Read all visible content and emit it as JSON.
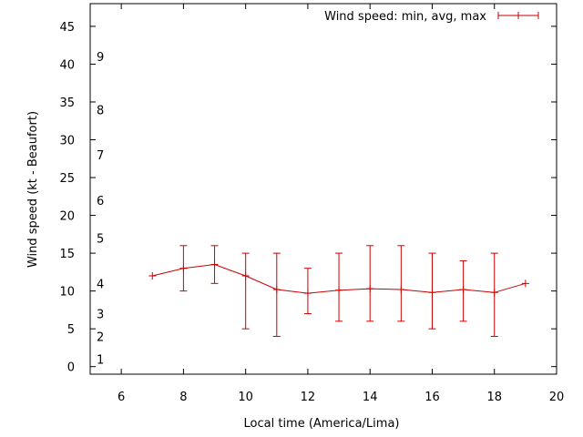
{
  "chart_data": {
    "type": "line",
    "title": "",
    "xlabel": "Local time (America/Lima)",
    "ylabel": "Wind speed (kt - Beaufort)",
    "xlim": [
      5,
      20
    ],
    "ylim": [
      -1,
      48
    ],
    "x_ticks": [
      "6",
      "8",
      "10",
      "12",
      "14",
      "16",
      "18",
      "20"
    ],
    "y_ticks": [
      "0",
      "5",
      "10",
      "15",
      "20",
      "25",
      "30",
      "35",
      "40",
      "45"
    ],
    "beaufort_labels": [
      {
        "label": "1",
        "kt": 1
      },
      {
        "label": "2",
        "kt": 4
      },
      {
        "label": "3",
        "kt": 7
      },
      {
        "label": "4",
        "kt": 11
      },
      {
        "label": "5",
        "kt": 17
      },
      {
        "label": "6",
        "kt": 22
      },
      {
        "label": "7",
        "kt": 28
      },
      {
        "label": "8",
        "kt": 34
      },
      {
        "label": "9",
        "kt": 41
      }
    ],
    "legend": {
      "label": "Wind speed: min, avg, max",
      "position": "top-right"
    },
    "series": [
      {
        "name": "Wind speed: min, avg, max",
        "color": "#cc0000",
        "points": [
          {
            "x": 7,
            "avg": 12,
            "min": 12,
            "max": 12
          },
          {
            "x": 8,
            "avg": 13,
            "min": 10,
            "max": 16
          },
          {
            "x": 9,
            "avg": 13.5,
            "min": 11,
            "max": 16
          },
          {
            "x": 10,
            "avg": 12,
            "min": 5,
            "max": 15
          },
          {
            "x": 11,
            "avg": 10.2,
            "min": 4,
            "max": 15
          },
          {
            "x": 12,
            "avg": 9.7,
            "min": 7,
            "max": 13
          },
          {
            "x": 13,
            "avg": 10.1,
            "min": 6,
            "max": 15
          },
          {
            "x": 14,
            "avg": 10.3,
            "min": 6,
            "max": 16
          },
          {
            "x": 15,
            "avg": 10.2,
            "min": 6,
            "max": 16
          },
          {
            "x": 16,
            "avg": 9.8,
            "min": 5,
            "max": 15
          },
          {
            "x": 17,
            "avg": 10.2,
            "min": 6,
            "max": 14
          },
          {
            "x": 18,
            "avg": 9.8,
            "min": 4,
            "max": 15
          },
          {
            "x": 19,
            "avg": 11,
            "min": 11,
            "max": 11
          }
        ]
      }
    ]
  }
}
